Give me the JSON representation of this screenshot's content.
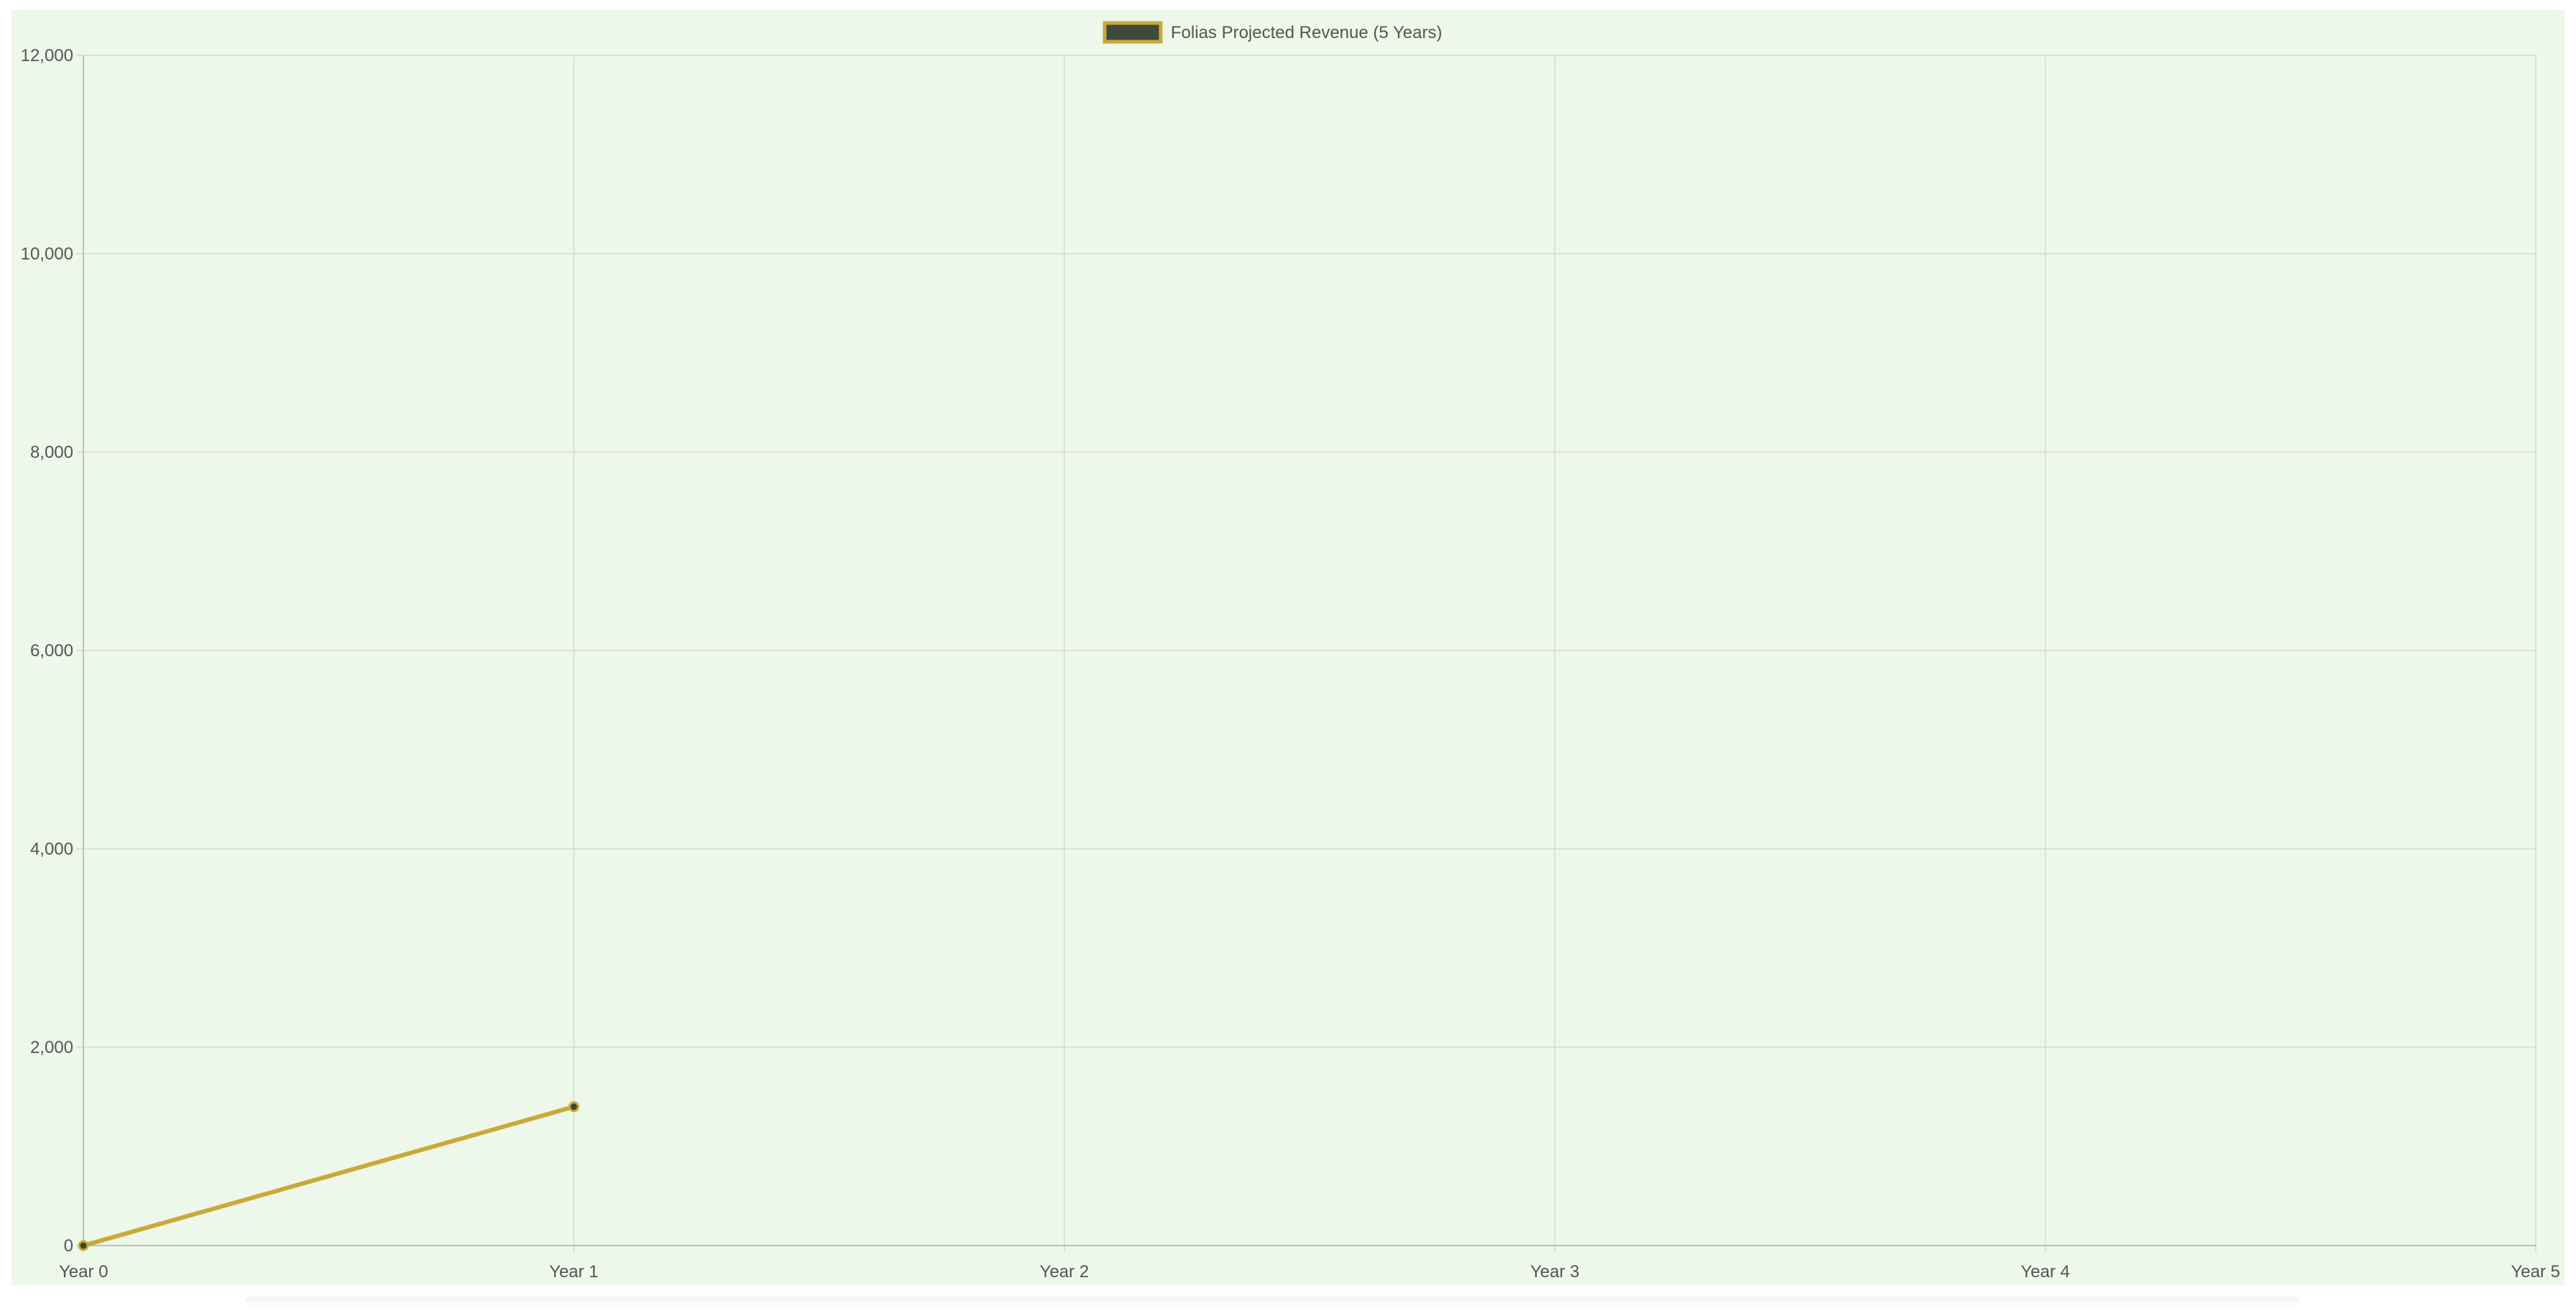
{
  "chart_data": {
    "type": "line",
    "title": "",
    "xlabel": "",
    "ylabel": "",
    "categories": [
      "Year 0",
      "Year 1",
      "Year 2",
      "Year 3",
      "Year 4",
      "Year 5"
    ],
    "series": [
      {
        "name": "Folias Projected Revenue (5 Years)",
        "values": [
          0,
          1400,
          null,
          null,
          null,
          null
        ]
      }
    ],
    "ylim": [
      0,
      12000
    ],
    "yticks": [
      0,
      2000,
      4000,
      6000,
      8000,
      10000,
      12000
    ],
    "ytick_labels": [
      "0",
      "2,000",
      "4,000",
      "6,000",
      "8,000",
      "10,000",
      "12,000"
    ],
    "grid": true,
    "legend_position": "top-center",
    "colors": {
      "line": "#c9a93a",
      "point_fill": "#3b4a2b",
      "legend_fill": "#3e4a3c",
      "legend_border": "#c9a93a",
      "grid": "#d3dcd2",
      "background": "#edf7ea"
    }
  }
}
